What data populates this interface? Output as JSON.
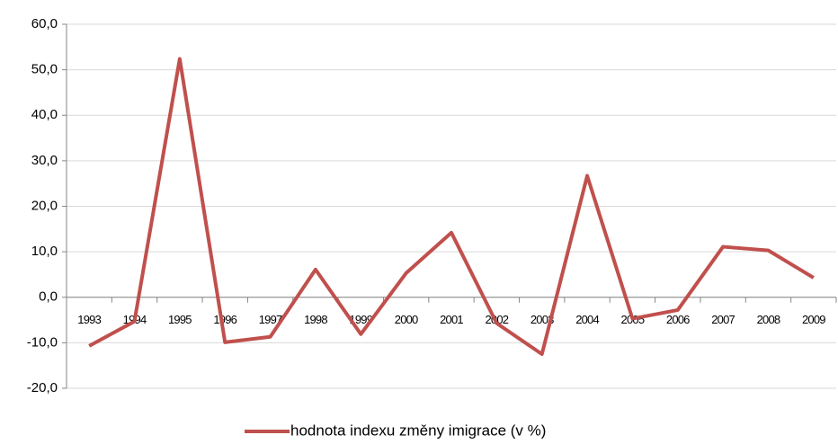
{
  "chart_data": {
    "type": "line",
    "categories": [
      "1993",
      "1994",
      "1995",
      "1996",
      "1997",
      "1998",
      "1999",
      "2000",
      "2001",
      "2002",
      "2003",
      "2004",
      "2005",
      "2006",
      "2007",
      "2008",
      "2009"
    ],
    "series": [
      {
        "name": "hodnota indexu změny imigrace (v %)",
        "color": "#c0504d",
        "values": [
          -10.7,
          -5.3,
          52.4,
          -9.9,
          -8.7,
          6.1,
          -8.1,
          5.3,
          14.2,
          -5.7,
          -12.5,
          26.7,
          -4.7,
          -2.8,
          11.1,
          10.3,
          4.3
        ]
      }
    ],
    "ylim": [
      -20,
      60
    ],
    "yticks": [
      {
        "value": -20,
        "label": "-20,0"
      },
      {
        "value": -10,
        "label": "-10,0"
      },
      {
        "value": 0,
        "label": "0,0"
      },
      {
        "value": 10,
        "label": "10,0"
      },
      {
        "value": 20,
        "label": "20,0"
      },
      {
        "value": 30,
        "label": "30,0"
      },
      {
        "value": 40,
        "label": "40,0"
      },
      {
        "value": 50,
        "label": "50,0"
      },
      {
        "value": 60,
        "label": "60,0"
      }
    ],
    "grid": true,
    "legend": "bottom"
  }
}
